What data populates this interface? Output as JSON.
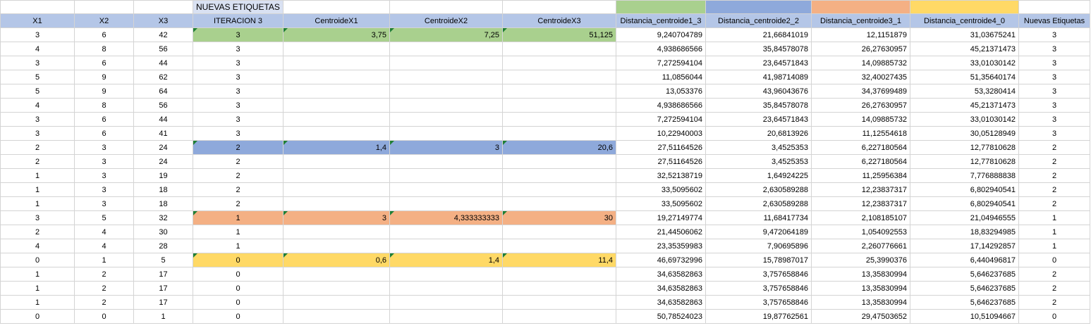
{
  "title_row": {
    "label": "NUEVAS ETIQUETAS"
  },
  "colors": {
    "header": "#b4c6e7",
    "title": "#d9e1f2",
    "cluster_3": "#a9d08e",
    "cluster_2": "#8ea9db",
    "cluster_1": "#f4b084",
    "cluster_0": "#ffd966",
    "comment_marker": "#1e7e34"
  },
  "headers": [
    "X1",
    "X2",
    "X3",
    "ITERACION 3",
    "CentroideX1",
    "CentroideX2",
    "CentroideX3",
    "Distancia_centroide1_3",
    "Distancia_centroide2_2",
    "Distancia_centroide3_1",
    "Distancia_centroide4_0",
    "Nuevas Etiquetas"
  ],
  "rows": [
    {
      "x1": "3",
      "x2": "6",
      "x3": "42",
      "iter": "3",
      "c1": "3,75",
      "c2": "7,25",
      "c3": "51,125",
      "d1": "9,240704789",
      "d2": "21,66841019",
      "d3": "12,1151879",
      "d4": "31,03675241",
      "label": "3"
    },
    {
      "x1": "4",
      "x2": "8",
      "x3": "56",
      "iter": "3",
      "c1": "",
      "c2": "",
      "c3": "",
      "d1": "4,938686566",
      "d2": "35,84578078",
      "d3": "26,27630957",
      "d4": "45,21371473",
      "label": "3"
    },
    {
      "x1": "3",
      "x2": "6",
      "x3": "44",
      "iter": "3",
      "c1": "",
      "c2": "",
      "c3": "",
      "d1": "7,272594104",
      "d2": "23,64571843",
      "d3": "14,09885732",
      "d4": "33,01030142",
      "label": "3"
    },
    {
      "x1": "5",
      "x2": "9",
      "x3": "62",
      "iter": "3",
      "c1": "",
      "c2": "",
      "c3": "",
      "d1": "11,0856044",
      "d2": "41,98714089",
      "d3": "32,40027435",
      "d4": "51,35640174",
      "label": "3"
    },
    {
      "x1": "5",
      "x2": "9",
      "x3": "64",
      "iter": "3",
      "c1": "",
      "c2": "",
      "c3": "",
      "d1": "13,053376",
      "d2": "43,96043676",
      "d3": "34,37699489",
      "d4": "53,3280414",
      "label": "3"
    },
    {
      "x1": "4",
      "x2": "8",
      "x3": "56",
      "iter": "3",
      "c1": "",
      "c2": "",
      "c3": "",
      "d1": "4,938686566",
      "d2": "35,84578078",
      "d3": "26,27630957",
      "d4": "45,21371473",
      "label": "3"
    },
    {
      "x1": "3",
      "x2": "6",
      "x3": "44",
      "iter": "3",
      "c1": "",
      "c2": "",
      "c3": "",
      "d1": "7,272594104",
      "d2": "23,64571843",
      "d3": "14,09885732",
      "d4": "33,01030142",
      "label": "3"
    },
    {
      "x1": "3",
      "x2": "6",
      "x3": "41",
      "iter": "3",
      "c1": "",
      "c2": "",
      "c3": "",
      "d1": "10,22940003",
      "d2": "20,6813926",
      "d3": "11,12554618",
      "d4": "30,05128949",
      "label": "3"
    },
    {
      "x1": "2",
      "x2": "3",
      "x3": "24",
      "iter": "2",
      "c1": "1,4",
      "c2": "3",
      "c3": "20,6",
      "d1": "27,51164526",
      "d2": "3,4525353",
      "d3": "6,227180564",
      "d4": "12,77810628",
      "label": "2"
    },
    {
      "x1": "2",
      "x2": "3",
      "x3": "24",
      "iter": "2",
      "c1": "",
      "c2": "",
      "c3": "",
      "d1": "27,51164526",
      "d2": "3,4525353",
      "d3": "6,227180564",
      "d4": "12,77810628",
      "label": "2"
    },
    {
      "x1": "1",
      "x2": "3",
      "x3": "19",
      "iter": "2",
      "c1": "",
      "c2": "",
      "c3": "",
      "d1": "32,52138719",
      "d2": "1,64924225",
      "d3": "11,25956384",
      "d4": "7,776888838",
      "label": "2"
    },
    {
      "x1": "1",
      "x2": "3",
      "x3": "18",
      "iter": "2",
      "c1": "",
      "c2": "",
      "c3": "",
      "d1": "33,5095602",
      "d2": "2,630589288",
      "d3": "12,23837317",
      "d4": "6,802940541",
      "label": "2"
    },
    {
      "x1": "1",
      "x2": "3",
      "x3": "18",
      "iter": "2",
      "c1": "",
      "c2": "",
      "c3": "",
      "d1": "33,5095602",
      "d2": "2,630589288",
      "d3": "12,23837317",
      "d4": "6,802940541",
      "label": "2"
    },
    {
      "x1": "3",
      "x2": "5",
      "x3": "32",
      "iter": "1",
      "c1": "3",
      "c2": "4,333333333",
      "c3": "30",
      "d1": "19,27149774",
      "d2": "11,68417734",
      "d3": "2,108185107",
      "d4": "21,04946555",
      "label": "1"
    },
    {
      "x1": "2",
      "x2": "4",
      "x3": "30",
      "iter": "1",
      "c1": "",
      "c2": "",
      "c3": "",
      "d1": "21,44506062",
      "d2": "9,472064189",
      "d3": "1,054092553",
      "d4": "18,83294985",
      "label": "1"
    },
    {
      "x1": "4",
      "x2": "4",
      "x3": "28",
      "iter": "1",
      "c1": "",
      "c2": "",
      "c3": "",
      "d1": "23,35359983",
      "d2": "7,90695896",
      "d3": "2,260776661",
      "d4": "17,14292857",
      "label": "1"
    },
    {
      "x1": "0",
      "x2": "1",
      "x3": "5",
      "iter": "0",
      "c1": "0,6",
      "c2": "1,4",
      "c3": "11,4",
      "d1": "46,69732996",
      "d2": "15,78987017",
      "d3": "25,3990376",
      "d4": "6,440496817",
      "label": "0"
    },
    {
      "x1": "1",
      "x2": "2",
      "x3": "17",
      "iter": "0",
      "c1": "",
      "c2": "",
      "c3": "",
      "d1": "34,63582863",
      "d2": "3,757658846",
      "d3": "13,35830994",
      "d4": "5,646237685",
      "label": "2"
    },
    {
      "x1": "1",
      "x2": "2",
      "x3": "17",
      "iter": "0",
      "c1": "",
      "c2": "",
      "c3": "",
      "d1": "34,63582863",
      "d2": "3,757658846",
      "d3": "13,35830994",
      "d4": "5,646237685",
      "label": "2"
    },
    {
      "x1": "1",
      "x2": "2",
      "x3": "17",
      "iter": "0",
      "c1": "",
      "c2": "",
      "c3": "",
      "d1": "34,63582863",
      "d2": "3,757658846",
      "d3": "13,35830994",
      "d4": "5,646237685",
      "label": "2"
    },
    {
      "x1": "0",
      "x2": "0",
      "x3": "1",
      "iter": "0",
      "c1": "",
      "c2": "",
      "c3": "",
      "d1": "50,78524023",
      "d2": "19,87762561",
      "d3": "29,47503652",
      "d4": "10,51094667",
      "label": "0"
    }
  ],
  "highlighted_rows": {
    "0": "hl-green",
    "8": "hl-blue",
    "13": "hl-orange",
    "16": "hl-yellow"
  }
}
